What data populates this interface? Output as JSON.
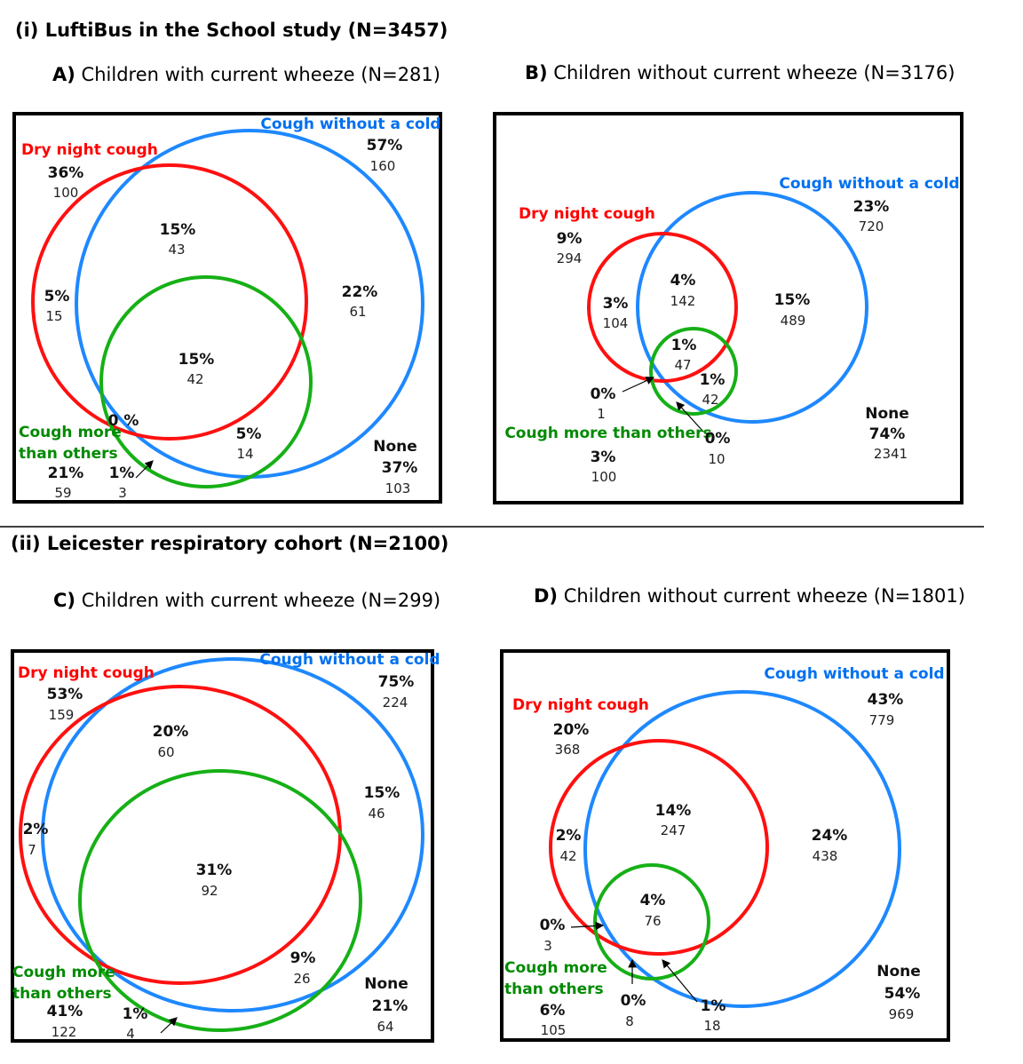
{
  "sections": [
    {
      "title": "(i) LuftiBus in the School study (N=3457)"
    },
    {
      "title": "(ii) Leicester respiratory cohort (N=2100)"
    }
  ],
  "panels": {
    "A": {
      "letter": "A)",
      "title": "Children with current wheeze (N=281)",
      "dry": {
        "label": "Dry night cough",
        "pct": "36%",
        "n": "100"
      },
      "cough": {
        "label": "Cough without a cold",
        "pct": "57%",
        "n": "160"
      },
      "more": {
        "label1": "Cough more",
        "label2": "than others",
        "pct": "21%",
        "n": "59"
      },
      "none": {
        "label": "None",
        "pct": "37%",
        "n": "103"
      },
      "regions": {
        "dry_cough": {
          "pct": "15%",
          "n": "43"
        },
        "dry_only": {
          "pct": "5%",
          "n": "15"
        },
        "cough_only": {
          "pct": "22%",
          "n": "61"
        },
        "all_three": {
          "pct": "15%",
          "n": "42"
        },
        "dry_more": {
          "pct": "0 %"
        },
        "more_only": {
          "pct": "1%",
          "n": "3"
        },
        "cough_more": {
          "pct": "5%",
          "n": "14"
        }
      }
    },
    "B": {
      "letter": "B)",
      "title": "Children without current wheeze (N=3176)",
      "dry": {
        "label": "Dry night cough",
        "pct": "9%",
        "n": "294"
      },
      "cough": {
        "label": "Cough without a cold",
        "pct": "23%",
        "n": "720"
      },
      "more": {
        "label": "Cough more than others",
        "pct": "3%",
        "n": "100"
      },
      "none": {
        "label": "None",
        "pct": "74%",
        "n": "2341"
      },
      "regions": {
        "dry_cough": {
          "pct": "4%",
          "n": "142"
        },
        "dry_only": {
          "pct": "3%",
          "n": "104"
        },
        "cough_only": {
          "pct": "15%",
          "n": "489"
        },
        "all_three": {
          "pct": "1%",
          "n": "47"
        },
        "cough_more": {
          "pct": "1%",
          "n": "42"
        },
        "dry_more": {
          "pct": "0%",
          "n": "1"
        },
        "more_only": {
          "pct": "0%",
          "n": "10"
        }
      }
    },
    "C": {
      "letter": "C)",
      "title": "Children with current wheeze (N=299)",
      "dry": {
        "label": "Dry night cough",
        "pct": "53%",
        "n": "159"
      },
      "cough": {
        "label": "Cough without a cold",
        "pct": "75%",
        "n": "224"
      },
      "more": {
        "label1": "Cough more",
        "label2": "than others",
        "pct": "41%",
        "n": "122"
      },
      "none": {
        "label": "None",
        "pct": "21%",
        "n": "64"
      },
      "regions": {
        "dry_cough": {
          "pct": "20%",
          "n": "60"
        },
        "cough_only": {
          "pct": "15%",
          "n": "46"
        },
        "dry_only": {
          "pct": "2%",
          "n": "7"
        },
        "all_three": {
          "pct": "31%",
          "n": "92"
        },
        "cough_more": {
          "pct": "9%",
          "n": "26"
        },
        "more_only": {
          "pct": "1%",
          "n": "4"
        }
      }
    },
    "D": {
      "letter": "D)",
      "title": "Children without current wheeze (N=1801)",
      "dry": {
        "label": "Dry night cough",
        "pct": "20%",
        "n": "368"
      },
      "cough": {
        "label": "Cough without a cold",
        "pct": "43%",
        "n": "779"
      },
      "more": {
        "label1": "Cough more",
        "label2": "than others",
        "pct": "6%",
        "n": "105"
      },
      "none": {
        "label": "None",
        "pct": "54%",
        "n": "969"
      },
      "regions": {
        "dry_cough": {
          "pct": "14%",
          "n": "247"
        },
        "dry_only": {
          "pct": "2%",
          "n": "42"
        },
        "cough_only": {
          "pct": "24%",
          "n": "438"
        },
        "all_three": {
          "pct": "4%",
          "n": "76"
        },
        "dry_more": {
          "pct": "0%",
          "n": "3"
        },
        "more_only": {
          "pct": "0%",
          "n": "8"
        },
        "cough_more": {
          "pct": "1%",
          "n": "18"
        }
      }
    }
  }
}
